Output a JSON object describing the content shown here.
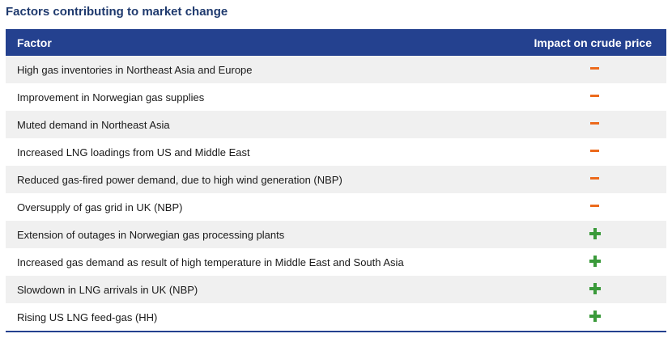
{
  "title": "Factors contributing to market change",
  "table": {
    "headers": {
      "factor": "Factor",
      "impact": "Impact on crude price"
    },
    "rows": [
      {
        "factor": "High gas inventories in Northeast Asia and Europe",
        "impact": "minus"
      },
      {
        "factor": "Improvement in Norwegian gas supplies",
        "impact": "minus"
      },
      {
        "factor": "Muted demand in Northeast Asia",
        "impact": "minus"
      },
      {
        "factor": "Increased LNG loadings from US and Middle East",
        "impact": "minus"
      },
      {
        "factor": "Reduced gas-fired power demand, due to high wind generation (NBP)",
        "impact": "minus"
      },
      {
        "factor": "Oversupply of gas grid in UK (NBP)",
        "impact": "minus"
      },
      {
        "factor": "Extension of outages in Norwegian gas processing plants",
        "impact": "plus"
      },
      {
        "factor": "Increased gas demand as result of high temperature in Middle East and South Asia",
        "impact": "plus"
      },
      {
        "factor": "Slowdown in LNG arrivals in UK (NBP)",
        "impact": "plus"
      },
      {
        "factor": "Rising US LNG feed-gas (HH)",
        "impact": "plus"
      }
    ]
  },
  "colors": {
    "header_bg": "#24418f",
    "title": "#1f3a6e",
    "minus": "#ec6a1c",
    "plus": "#3a9a3a",
    "shaded_row": "#f0f0f0"
  }
}
